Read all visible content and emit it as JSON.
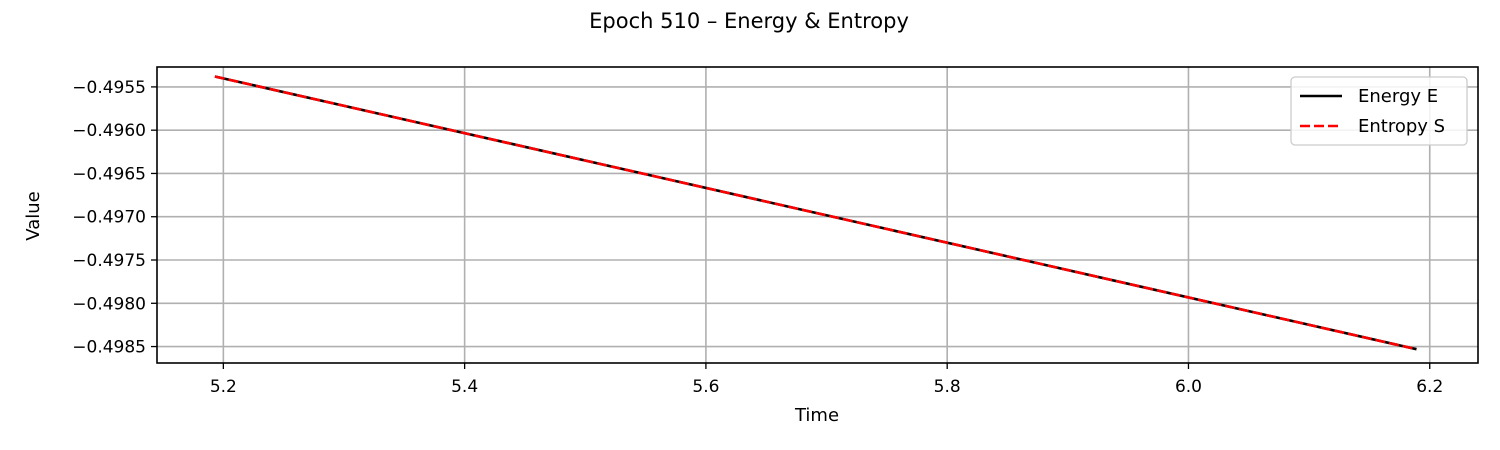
{
  "chart_data": {
    "type": "line",
    "title": "Epoch 510 – Energy & Entropy",
    "xlabel": "Time",
    "ylabel": "Value",
    "xlim": [
      5.145,
      6.24
    ],
    "ylim": [
      -0.49869,
      -0.49527
    ],
    "xticks": [
      5.2,
      5.4,
      5.6,
      5.8,
      6.0,
      6.2
    ],
    "xtick_labels": [
      "5.2",
      "5.4",
      "5.6",
      "5.8",
      "6.0",
      "6.2"
    ],
    "yticks": [
      -0.4955,
      -0.496,
      -0.4965,
      -0.497,
      -0.4975,
      -0.498,
      -0.4985
    ],
    "ytick_labels": [
      "−0.4955",
      "−0.4960",
      "−0.4965",
      "−0.4970",
      "−0.4975",
      "−0.4980",
      "−0.4985"
    ],
    "grid": true,
    "legend": "top-right",
    "series": [
      {
        "name": "Energy E",
        "color": "#000000",
        "style": "solid",
        "x": [
          5.193,
          6.189
        ],
        "y": [
          -0.49538,
          -0.49853
        ]
      },
      {
        "name": "Entropy S",
        "color": "#ff0000",
        "style": "dashed",
        "x": [
          5.193,
          6.189
        ],
        "y": [
          -0.49538,
          -0.49853
        ]
      }
    ]
  }
}
